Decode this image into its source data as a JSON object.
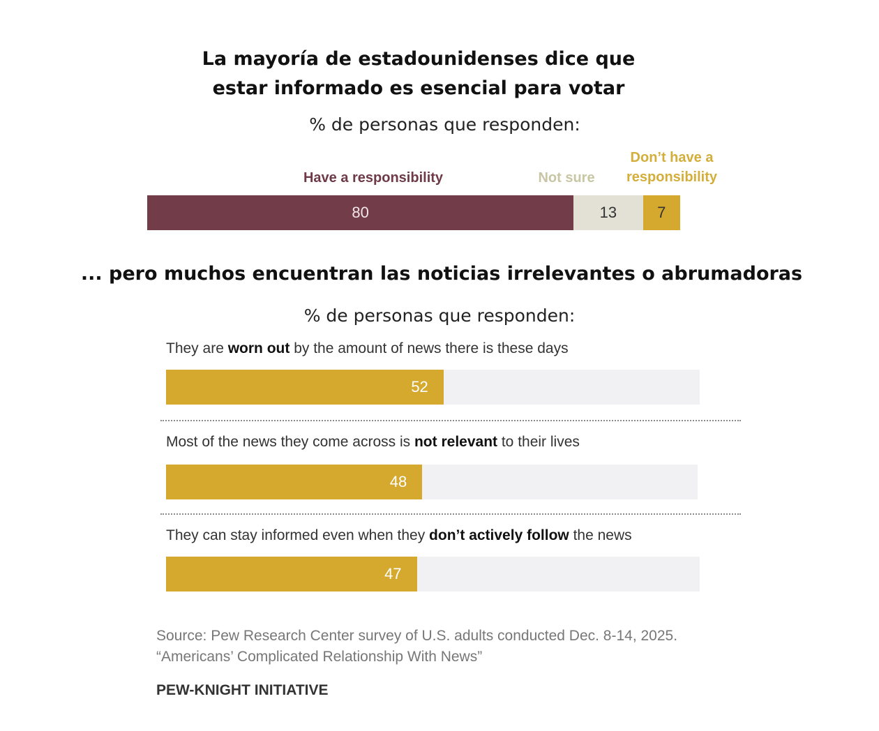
{
  "title": [
    "La mayoría de estadounidenses dice que",
    "estar informado es esencial para votar"
  ],
  "subtitle1": "% de personas que responden:",
  "subtitle2": "% de personas que responden:",
  "section2_title": "... pero muchos encuentran las noticias irrelevantes o abrumadoras",
  "source": [
    "Source: Pew Research Center survey of U.S. adults conducted Dec. 8-14, 2025.",
    "“Americans’ Complicated Relationship With News”"
  ],
  "brand": "PEW-KNIGHT INITIATIVE",
  "chart_data": [
    {
      "type": "bar",
      "orientation": "horizontal",
      "stacked": true,
      "categories": [
        ""
      ],
      "series": [
        {
          "name": "Have a responsibility",
          "values": [
            80
          ],
          "color": "#723c49"
        },
        {
          "name": "Not sure",
          "values": [
            13
          ],
          "color": "#e3e1d6"
        },
        {
          "name": "Don’t have a responsibility",
          "values": [
            7
          ],
          "color": "#d4a92e"
        }
      ],
      "legend_labels": [
        "Have a responsibility",
        "Not sure",
        [
          "Don’t have a",
          "responsibility"
        ]
      ],
      "legend_colors": [
        "#6f3a48",
        "#c8c6a4",
        "#d4ae3a"
      ],
      "xlim": [
        0,
        100
      ]
    },
    {
      "type": "bar",
      "orientation": "horizontal",
      "xlim": [
        0,
        100
      ],
      "color": "#d4a92e",
      "track_color": "#f1f1f4",
      "items": [
        {
          "label_parts": [
            {
              "t": "They are ",
              "b": false
            },
            {
              "t": "worn out",
              "b": true
            },
            {
              "t": " by the amount of news there is these days",
              "b": false
            }
          ],
          "value": 52
        },
        {
          "label_parts": [
            {
              "t": "Most of the news they come across is ",
              "b": false
            },
            {
              "t": "not relevant",
              "b": true
            },
            {
              "t": " to their lives",
              "b": false
            }
          ],
          "value": 48
        },
        {
          "label_parts": [
            {
              "t": "They can stay informed even when they ",
              "b": false
            },
            {
              "t": "don’t actively follow",
              "b": true
            },
            {
              "t": " the news",
              "b": false
            }
          ],
          "value": 47
        }
      ]
    }
  ]
}
